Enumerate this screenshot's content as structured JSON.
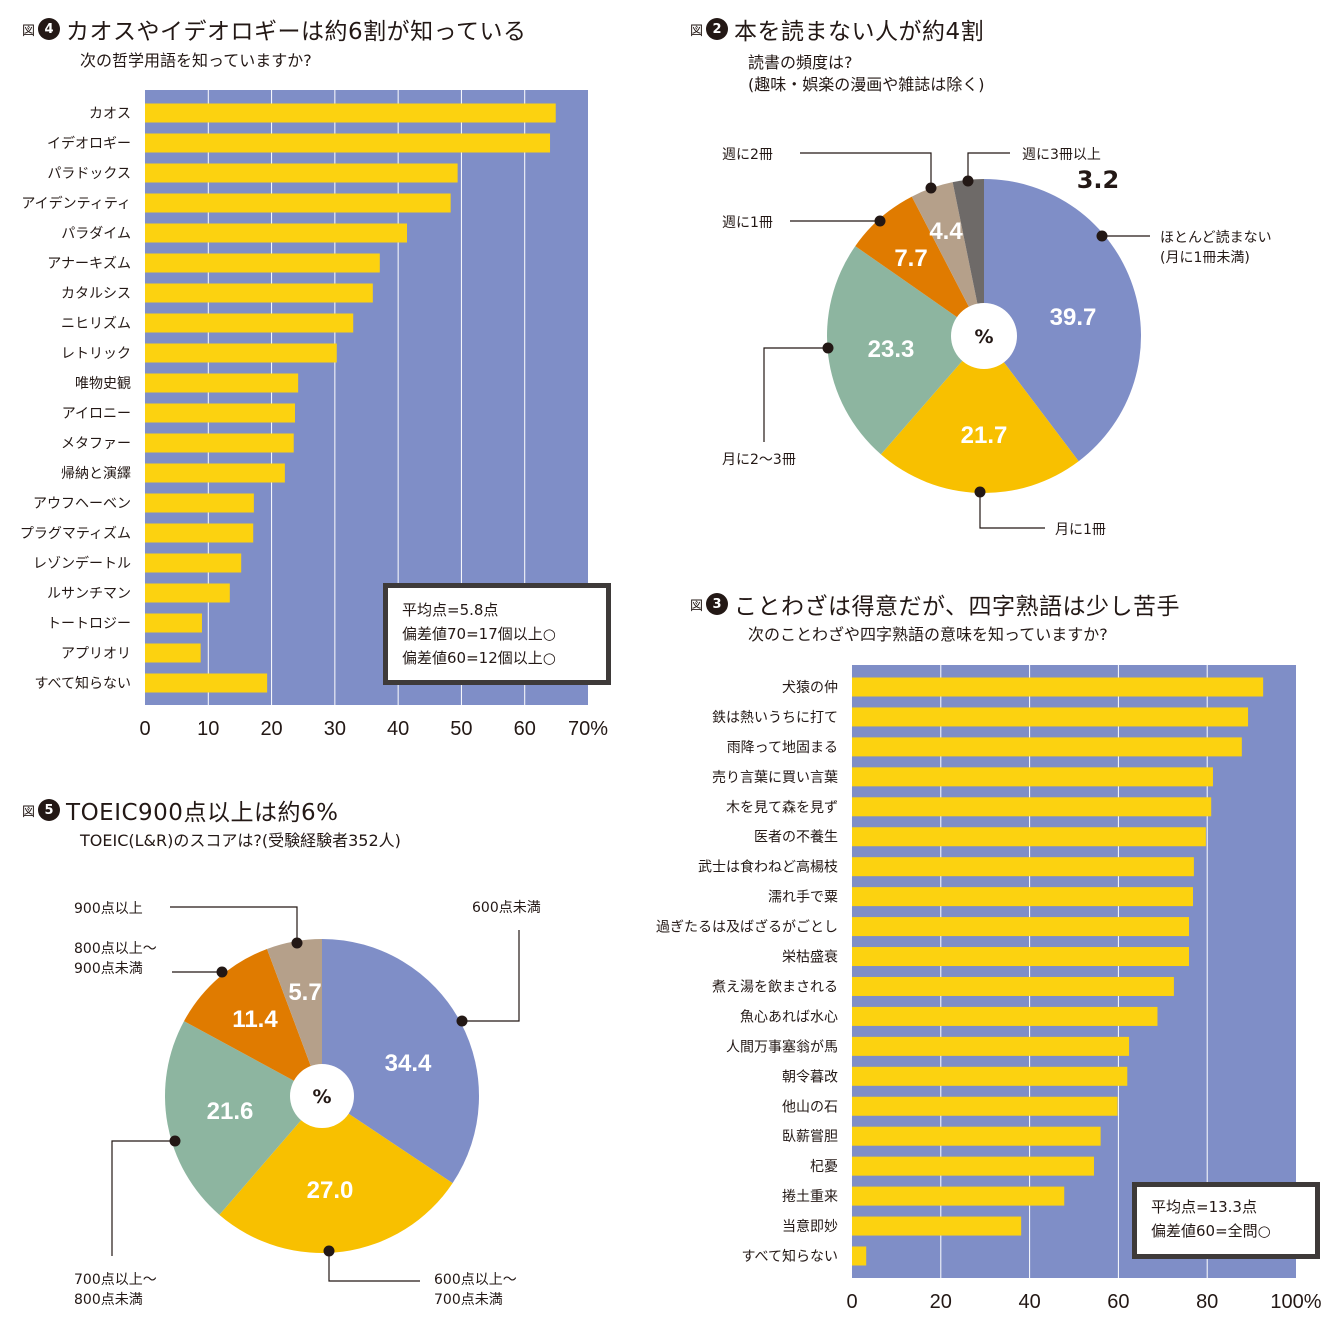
{
  "colors": {
    "plot_bg": "#7f8ec7",
    "bar": "#fcd210",
    "grid": "#ffffff",
    "pie": [
      "#7f8ec7",
      "#f8c000",
      "#8db5a0",
      "#e07b00",
      "#b5a08a",
      "#6e6a68"
    ]
  },
  "fig4": {
    "tag": "図",
    "num": "4",
    "title": "カオスやイデオロギーは約6割が知っている",
    "subtitle": "次の哲学用語を知っていますか?",
    "note": [
      "平均点=5.8点",
      "偏差値70=17個以上○",
      "偏差値60=12個以上○"
    ]
  },
  "fig2": {
    "tag": "図",
    "num": "2",
    "title": "本を読まない人が約4割",
    "subtitle": "読書の頻度は?\n(趣味・娯楽の漫画や雑誌は除く)"
  },
  "fig3": {
    "tag": "図",
    "num": "3",
    "title": "ことわざは得意だが、四字熟語は少し苦手",
    "subtitle": "次のことわざや四字熟語の意味を知っていますか?",
    "note": [
      "平均点=13.3点",
      "偏差値60=全問○"
    ]
  },
  "fig5": {
    "tag": "図",
    "num": "5",
    "title": "TOEIC900点以上は約6%",
    "subtitle": "TOEIC(L&R)のスコアは?(受験経験者352人)"
  },
  "chart_data": [
    {
      "id": "fig4",
      "type": "bar",
      "orientation": "horizontal",
      "title": "カオスやイデオロギーは約6割が知っている",
      "subtitle": "次の哲学用語を知っていますか?",
      "categories": [
        "カオス",
        "イデオロギー",
        "パラドックス",
        "アイデンティティ",
        "パラダイム",
        "アナーキズム",
        "カタルシス",
        "ニヒリズム",
        "レトリック",
        "唯物史観",
        "アイロニー",
        "メタファー",
        "帰納と演繹",
        "アウフヘーベン",
        "プラグマティズム",
        "レゾンデートル",
        "ルサンチマン",
        "トートロジー",
        "アプリオリ",
        "すべて知らない"
      ],
      "values": [
        64.9,
        64.0,
        49.4,
        48.3,
        41.4,
        37.1,
        36.0,
        32.9,
        30.3,
        24.2,
        23.7,
        23.5,
        22.1,
        17.2,
        17.1,
        15.2,
        13.4,
        9.0,
        8.8,
        19.3
      ],
      "xlim": [
        0,
        70
      ],
      "xticks": [
        0,
        10,
        20,
        30,
        40,
        50,
        60,
        70
      ],
      "xtick_labels": [
        "0",
        "10",
        "20",
        "30",
        "40",
        "50",
        "60",
        "70%"
      ],
      "grid": true
    },
    {
      "id": "fig2",
      "type": "pie",
      "title": "本を読まない人が約4割",
      "center_label": "%",
      "labels": [
        "ほとんど読まない\n(月に1冊未満)",
        "月に1冊",
        "月に2〜3冊",
        "週に1冊",
        "週に2冊",
        "週に3冊以上"
      ],
      "values": [
        39.7,
        21.7,
        23.3,
        7.7,
        4.4,
        3.2
      ],
      "value_labels": [
        "39.7",
        "21.7",
        "23.3",
        "7.7",
        "4.4",
        "3.2"
      ]
    },
    {
      "id": "fig3",
      "type": "bar",
      "orientation": "horizontal",
      "title": "ことわざは得意だが、四字熟語は少し苦手",
      "subtitle": "次のことわざや四字熟語の意味を知っていますか?",
      "categories": [
        "犬猿の仲",
        "鉄は熱いうちに打て",
        "雨降って地固まる",
        "売り言葉に買い言葉",
        "木を見て森を見ず",
        "医者の不養生",
        "武士は食わねど高楊枝",
        "濡れ手で粟",
        "過ぎたるは及ばざるがごとし",
        "栄枯盛衰",
        "煮え湯を飲まされる",
        "魚心あれば水心",
        "人間万事塞翁が馬",
        "朝令暮改",
        "他山の石",
        "臥薪嘗胆",
        "杞憂",
        "捲土重来",
        "当意即妙",
        "すべて知らない"
      ],
      "values": [
        92.6,
        89.2,
        87.8,
        81.3,
        80.9,
        79.7,
        77.0,
        76.8,
        75.9,
        75.9,
        72.5,
        68.8,
        62.4,
        62.0,
        59.8,
        56.0,
        54.5,
        47.8,
        38.1,
        3.2
      ],
      "xlim": [
        0,
        100
      ],
      "xticks": [
        0,
        20,
        40,
        60,
        80,
        100
      ],
      "xtick_labels": [
        "0",
        "20",
        "40",
        "60",
        "80",
        "100%"
      ],
      "grid": true
    },
    {
      "id": "fig5",
      "type": "pie",
      "title": "TOEIC900点以上は約6%",
      "center_label": "%",
      "labels": [
        "600点未満",
        "600点以上〜\n700点未満",
        "700点以上〜\n800点未満",
        "800点以上〜\n900点未満",
        "900点以上"
      ],
      "values": [
        34.4,
        27.0,
        21.6,
        11.4,
        5.7
      ],
      "value_labels": [
        "34.4",
        "27.0",
        "21.6",
        "11.4",
        "5.7"
      ]
    }
  ]
}
